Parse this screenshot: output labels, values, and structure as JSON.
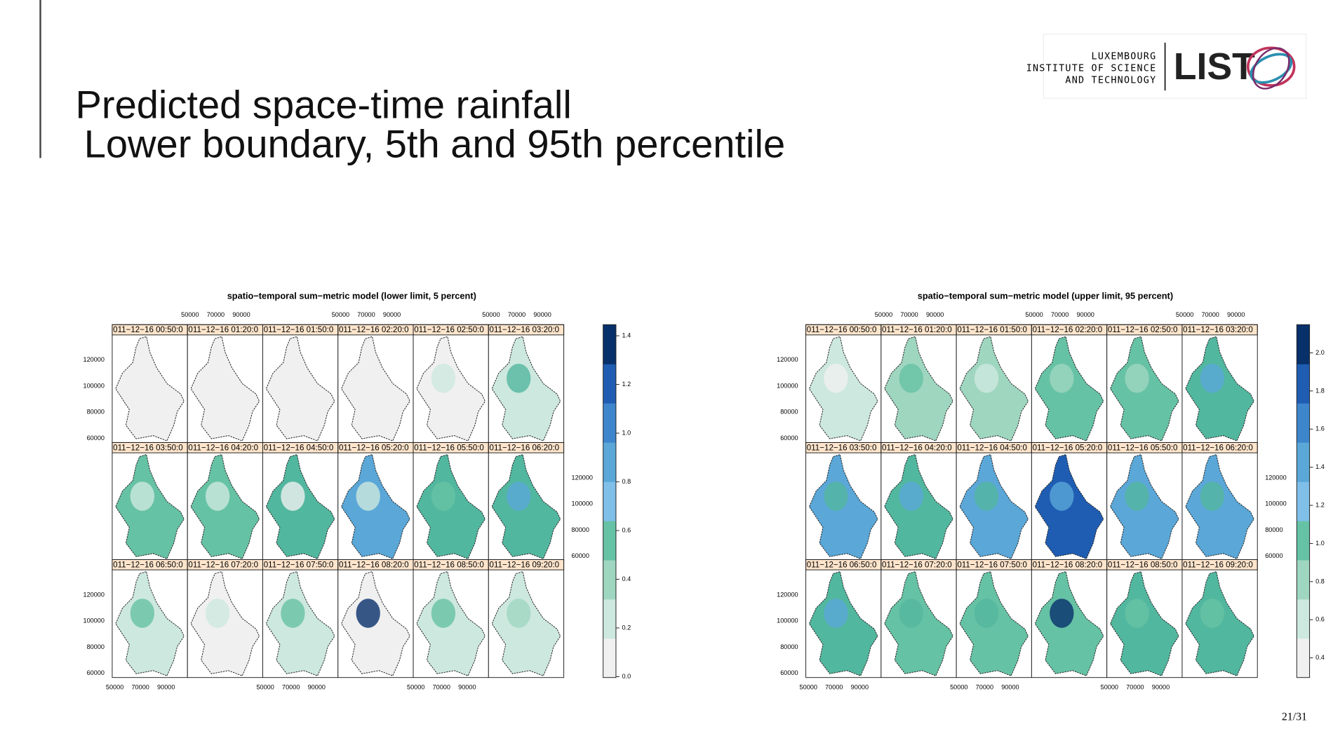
{
  "header": {
    "title": "Predicted space-time rainfall",
    "subtitle": "Lower boundary, 5th and 95th percentile"
  },
  "logo": {
    "line1": "LUXEMBOURG",
    "line2": "INSTITUTE OF SCIENCE",
    "line3": "AND TECHNOLOGY",
    "mark": "LIST"
  },
  "plots": [
    {
      "title": "spatio−temporal sum−metric model (lower limit, 5 percent)",
      "panels": [
        "011−12−16 00:50:0",
        "011−12−16 01:20:0",
        "011−12−16 01:50:0",
        "011−12−16 02:20:0",
        "011−12−16 02:50:0",
        "011−12−16 03:20:0",
        "011−12−16 03:50:0",
        "011−12−16 04:20:0",
        "011−12−16 04:50:0",
        "011−12−16 05:20:0",
        "011−12−16 05:50:0",
        "011−12−16 06:20:0",
        "011−12−16 06:50:0",
        "011−12−16 07:20:0",
        "011−12−16 07:50:0",
        "011−12−16 08:20:0",
        "011−12−16 08:50:0",
        "011−12−16 09:20:0"
      ],
      "x_ticks": [
        "50000",
        "70000",
        "90000"
      ],
      "y_ticks": [
        "60000",
        "80000",
        "100000",
        "120000"
      ],
      "colorbar_ticks": [
        "0.0",
        "0.2",
        "0.4",
        "0.6",
        "0.8",
        "1.0",
        "1.2",
        "1.4"
      ]
    },
    {
      "title": "spatio−temporal sum−metric model (upper limit, 95 percent)",
      "panels": [
        "011−12−16 00:50:0",
        "011−12−16 01:20:0",
        "011−12−16 01:50:0",
        "011−12−16 02:20:0",
        "011−12−16 02:50:0",
        "011−12−16 03:20:0",
        "011−12−16 03:50:0",
        "011−12−16 04:20:0",
        "011−12−16 04:50:0",
        "011−12−16 05:20:0",
        "011−12−16 05:50:0",
        "011−12−16 06:20:0",
        "011−12−16 06:50:0",
        "011−12−16 07:20:0",
        "011−12−16 07:50:0",
        "011−12−16 08:20:0",
        "011−12−16 08:50:0",
        "011−12−16 09:20:0"
      ],
      "x_ticks": [
        "50000",
        "70000",
        "90000"
      ],
      "y_ticks": [
        "60000",
        "80000",
        "100000",
        "120000"
      ],
      "colorbar_ticks": [
        "0.4",
        "0.6",
        "0.8",
        "1.0",
        "1.2",
        "1.4",
        "1.6",
        "1.8",
        "2.0"
      ]
    }
  ],
  "page_number": "21/31"
}
